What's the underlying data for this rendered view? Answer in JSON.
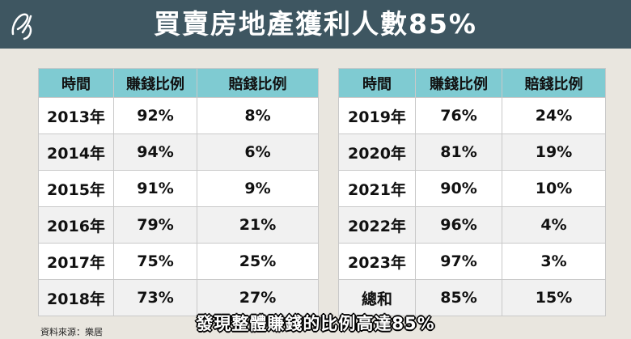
{
  "header": {
    "title": "買賣房地產獲利人數85%"
  },
  "tables": [
    {
      "columns": [
        "時間",
        "賺錢比例",
        "賠錢比例"
      ],
      "rows": [
        [
          "2013年",
          "92%",
          "8%"
        ],
        [
          "2014年",
          "94%",
          "6%"
        ],
        [
          "2015年",
          "91%",
          "9%"
        ],
        [
          "2016年",
          "79%",
          "21%"
        ],
        [
          "2017年",
          "75%",
          "25%"
        ],
        [
          "2018年",
          "73%",
          "27%"
        ]
      ]
    },
    {
      "columns": [
        "時間",
        "賺錢比例",
        "賠錢比例"
      ],
      "rows": [
        [
          "2019年",
          "76%",
          "24%"
        ],
        [
          "2020年",
          "81%",
          "19%"
        ],
        [
          "2021年",
          "90%",
          "10%"
        ],
        [
          "2022年",
          "96%",
          "4%"
        ],
        [
          "2023年",
          "97%",
          "3%"
        ],
        [
          "總和",
          "85%",
          "15%"
        ]
      ]
    }
  ],
  "source": "資料來源：樂居",
  "subtitle": "發現整體賺錢的比例高達85%"
}
